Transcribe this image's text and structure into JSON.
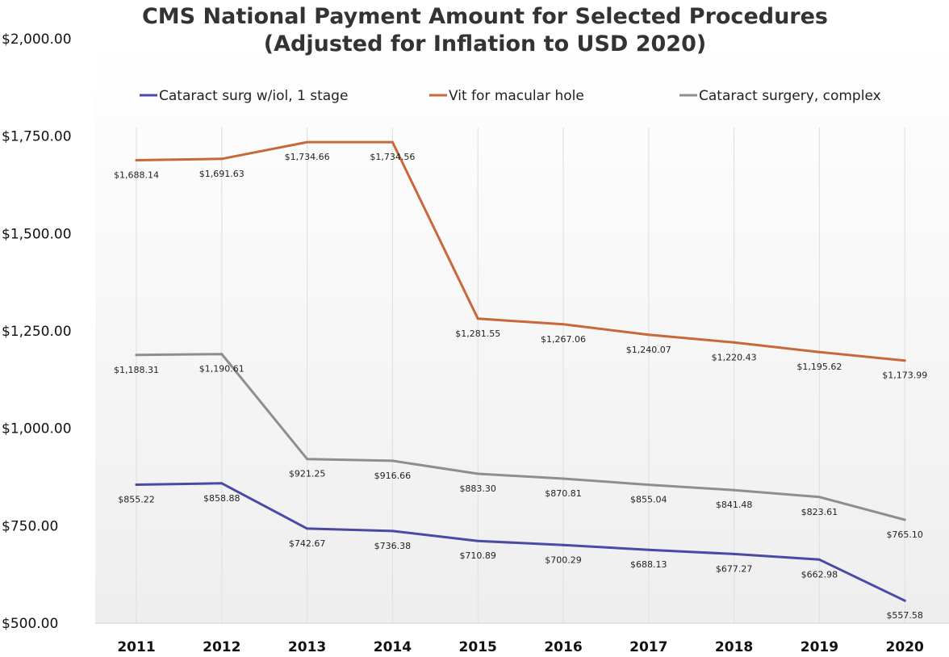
{
  "chart_data": {
    "type": "line",
    "title": [
      "CMS National Payment Amount for Selected Procedures",
      "(Adjusted for Inflation to USD 2020)"
    ],
    "xlabel": "",
    "ylabel": "",
    "x": [
      "2011",
      "2012",
      "2013",
      "2014",
      "2015",
      "2016",
      "2017",
      "2018",
      "2019",
      "2020"
    ],
    "ylim": [
      500,
      2000
    ],
    "yticks": [
      500,
      750,
      1000,
      1250,
      1500,
      1750,
      2000
    ],
    "ytick_labels": [
      "$500.00",
      "$750.00",
      "$1,000.00",
      "$1,250.00",
      "$1,500.00",
      "$1,750.00",
      "$2,000.00"
    ],
    "legend_position": "top",
    "grid": "vertical lines",
    "series": [
      {
        "name": "Cataract surg w/iol, 1 stage",
        "color": "#4a4aa6",
        "values": [
          855.22,
          858.88,
          742.67,
          736.38,
          710.89,
          700.29,
          688.13,
          677.27,
          662.98,
          557.58
        ],
        "labels": [
          "$855.22",
          "$858.88",
          "$742.67",
          "$736.38",
          "$710.89",
          "$700.29",
          "$688.13",
          "$677.27",
          "$662.98",
          "$557.58"
        ]
      },
      {
        "name": "Vit for macular hole",
        "color": "#c8683a",
        "values": [
          1688.14,
          1691.63,
          1734.66,
          1734.56,
          1281.55,
          1267.06,
          1240.07,
          1220.43,
          1195.62,
          1173.99
        ],
        "labels": [
          "$1,688.14",
          "$1,691.63",
          "$1,734.66",
          "$1,734.56",
          "$1,281.55",
          "$1,267.06",
          "$1,240.07",
          "$1,220.43",
          "$1,195.62",
          "$1,173.99"
        ]
      },
      {
        "name": "Cataract surgery, complex",
        "color": "#8e8e8e",
        "values": [
          1188.31,
          1190.61,
          921.25,
          916.66,
          883.3,
          870.81,
          855.04,
          841.48,
          823.61,
          765.1
        ],
        "labels": [
          "$1,188.31",
          "$1,190.61",
          "$921.25",
          "$916.66",
          "$883.30",
          "$870.81",
          "$855.04",
          "$841.48",
          "$823.61",
          "$765.10"
        ]
      }
    ]
  }
}
